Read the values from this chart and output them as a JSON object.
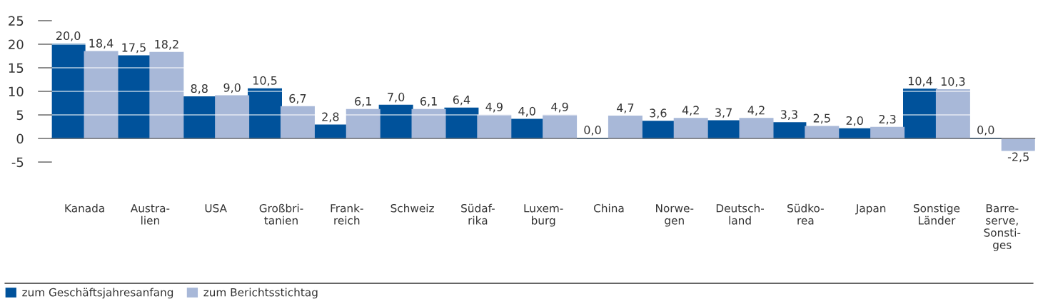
{
  "chart_data": {
    "type": "bar",
    "categories": [
      "Kanada",
      "Austra-\nlien",
      "USA",
      "Großbri-\ntanien",
      "Frank-\nreich",
      "Schweiz",
      "Südaf-\nrika",
      "Luxem-\nburg",
      "China",
      "Norwe-\ngen",
      "Deutsch-\nland",
      "Südko-\nrea",
      "Japan",
      "Sonstige\nLänder",
      "Barre-\nserve,\nSonsti-\nges"
    ],
    "series": [
      {
        "name": "zum Geschäftsjahresanfang",
        "color": "#00529b",
        "values": [
          20.0,
          17.5,
          8.8,
          10.5,
          2.8,
          7.0,
          6.4,
          4.0,
          0.0,
          3.6,
          3.7,
          3.3,
          2.0,
          10.4,
          0.0
        ],
        "value_labels": [
          "20,0",
          "17,5",
          "8,8",
          "10,5",
          "2,8",
          "7,0",
          "6,4",
          "4,0",
          "0,0",
          "3,6",
          "3,7",
          "3,3",
          "2,0",
          "10,4",
          "0,0"
        ]
      },
      {
        "name": "zum Berichtsstichtag",
        "color": "#a8b8d8",
        "values": [
          18.4,
          18.2,
          9.0,
          6.7,
          6.1,
          6.1,
          4.9,
          4.9,
          4.7,
          4.2,
          4.2,
          2.5,
          2.3,
          10.3,
          -2.5
        ],
        "value_labels": [
          "18,4",
          "18,2",
          "9,0",
          "6,7",
          "6,1",
          "6,1",
          "4,9",
          "4,9",
          "4,7",
          "4,2",
          "4,2",
          "2,5",
          "2,3",
          "10,3",
          "-2,5"
        ]
      }
    ],
    "ylim": [
      -5,
      25
    ],
    "yticks": [
      25,
      20,
      15,
      10,
      5,
      0,
      -5
    ],
    "grid": "y",
    "legend": "bottom left"
  }
}
